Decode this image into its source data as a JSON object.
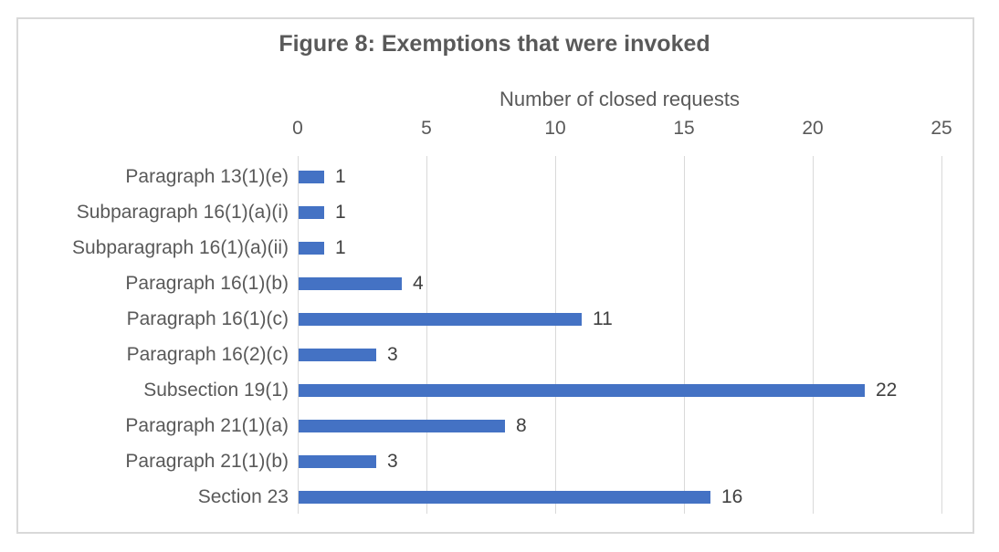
{
  "chart_data": {
    "type": "bar",
    "orientation": "horizontal",
    "title": "Figure 8: Exemptions that were invoked",
    "xlabel": "Number of closed requests",
    "ylabel": "",
    "categories": [
      "Paragraph 13(1)(e)",
      "Subparagraph 16(1)(a)(i)",
      "Subparagraph 16(1)(a)(ii)",
      "Paragraph 16(1)(b)",
      "Paragraph 16(1)(c)",
      "Paragraph 16(2)(c)",
      "Subsection 19(1)",
      "Paragraph 21(1)(a)",
      "Paragraph 21(1)(b)",
      "Section 23"
    ],
    "values": [
      1,
      1,
      1,
      4,
      11,
      3,
      22,
      8,
      3,
      16
    ],
    "data_labels_shown": true,
    "xlim": [
      0,
      25
    ],
    "xticks": [
      0,
      5,
      10,
      15,
      20,
      25
    ],
    "value_axis_position": "top",
    "grid": true,
    "legend_position": "none",
    "colors": {
      "bar": "#4472C4",
      "gridline": "#d9d9d9",
      "frame_border": "#d9d9d9",
      "title_text": "#595959",
      "axis_text": "#595959",
      "data_label_text": "#404040",
      "background": "#ffffff"
    }
  }
}
